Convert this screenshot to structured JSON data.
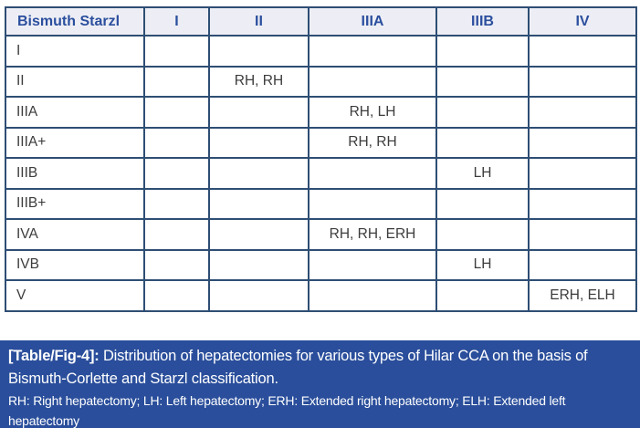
{
  "table": {
    "columns": [
      "Bismuth Starzl",
      "I",
      "II",
      "IIIA",
      "IIIB",
      "IV"
    ],
    "rows": [
      {
        "label": "I",
        "cells": [
          "",
          "",
          "",
          "",
          ""
        ]
      },
      {
        "label": "II",
        "cells": [
          "",
          "RH, RH",
          "",
          "",
          ""
        ]
      },
      {
        "label": "IIIA",
        "cells": [
          "",
          "",
          "RH, LH",
          "",
          ""
        ]
      },
      {
        "label": "IIIA+",
        "cells": [
          "",
          "",
          "RH, RH",
          "",
          ""
        ]
      },
      {
        "label": "IIIB",
        "cells": [
          "",
          "",
          "",
          "LH",
          ""
        ]
      },
      {
        "label": "IIIB+",
        "cells": [
          "",
          "",
          "",
          "",
          ""
        ]
      },
      {
        "label": "IVA",
        "cells": [
          "",
          "",
          "RH, RH, ERH",
          "",
          ""
        ]
      },
      {
        "label": "IVB",
        "cells": [
          "",
          "",
          "",
          "LH",
          ""
        ]
      },
      {
        "label": "V",
        "cells": [
          "",
          "",
          "",
          "",
          "ERH, ELH"
        ]
      }
    ]
  },
  "caption": {
    "tag": "[Table/Fig-4]:",
    "text": " Distribution of hepatectomies for various types of Hilar CCA on the basis of Bismuth-Corlette and Starzl classification.",
    "abbreviations": "RH: Right hepatectomy; LH: Left hepatectomy; ERH: Extended right hepatectomy; ELH: Extended left hepatectomy"
  },
  "colors": {
    "border": "#2E4E74",
    "header_bg": "#EDEEF5",
    "header_text": "#2B4F9E",
    "caption_bg": "#2A4E9B",
    "caption_text": "#FFFFFF",
    "body_text": "#3C3C3C"
  }
}
